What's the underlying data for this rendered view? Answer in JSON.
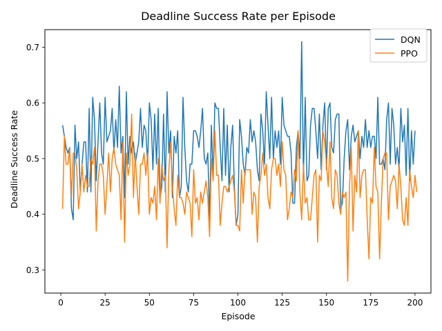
{
  "chart_data": {
    "type": "line",
    "title": "Deadline Success Rate per Episode",
    "xlabel": "Episode",
    "ylabel": "Deadline Success Rate",
    "xlim": [
      -9,
      209
    ],
    "ylim": [
      0.2585,
      0.7315
    ],
    "xticks": [
      0,
      25,
      50,
      75,
      100,
      125,
      150,
      175,
      200
    ],
    "yticks": [
      0.3,
      0.4,
      0.5,
      0.6,
      0.7
    ],
    "legend": "top-right",
    "grid": false,
    "series": [
      {
        "name": "DQN",
        "color": "#1f77b4",
        "values": [
          0.56,
          0.54,
          0.52,
          0.51,
          0.52,
          0.41,
          0.39,
          0.56,
          0.5,
          0.53,
          0.44,
          0.49,
          0.53,
          0.53,
          0.44,
          0.59,
          0.44,
          0.61,
          0.57,
          0.46,
          0.53,
          0.6,
          0.51,
          0.49,
          0.61,
          0.53,
          0.54,
          0.55,
          0.59,
          0.51,
          0.57,
          0.52,
          0.63,
          0.51,
          0.54,
          0.43,
          0.62,
          0.49,
          0.54,
          0.51,
          0.53,
          0.49,
          0.51,
          0.53,
          0.59,
          0.52,
          0.56,
          0.55,
          0.49,
          0.6,
          0.57,
          0.48,
          0.58,
          0.49,
          0.59,
          0.43,
          0.45,
          0.58,
          0.44,
          0.62,
          0.51,
          0.55,
          0.43,
          0.54,
          0.51,
          0.55,
          0.43,
          0.45,
          0.61,
          0.52,
          0.46,
          0.44,
          0.49,
          0.49,
          0.55,
          0.55,
          0.54,
          0.52,
          0.55,
          0.59,
          0.5,
          0.49,
          0.51,
          0.39,
          0.56,
          0.47,
          0.6,
          0.59,
          0.59,
          0.52,
          0.46,
          0.59,
          0.47,
          0.56,
          0.44,
          0.52,
          0.56,
          0.45,
          0.38,
          0.4,
          0.57,
          0.54,
          0.49,
          0.47,
          0.52,
          0.51,
          0.57,
          0.53,
          0.55,
          0.53,
          0.48,
          0.46,
          0.58,
          0.55,
          0.49,
          0.62,
          0.56,
          0.5,
          0.61,
          0.5,
          0.55,
          0.52,
          0.55,
          0.49,
          0.61,
          0.56,
          0.55,
          0.54,
          0.54,
          0.51,
          0.42,
          0.42,
          0.52,
          0.55,
          0.5,
          0.71,
          0.47,
          0.61,
          0.46,
          0.47,
          0.56,
          0.59,
          0.59,
          0.55,
          0.5,
          0.58,
          0.48,
          0.56,
          0.6,
          0.48,
          0.59,
          0.6,
          0.52,
          0.51,
          0.57,
          0.58,
          0.58,
          0.41,
          0.42,
          0.5,
          0.55,
          0.57,
          0.48,
          0.54,
          0.56,
          0.53,
          0.54,
          0.55,
          0.5,
          0.54,
          0.52,
          0.57,
          0.52,
          0.55,
          0.52,
          0.54,
          0.54,
          0.5,
          0.61,
          0.49,
          0.49,
          0.5,
          0.48,
          0.57,
          0.6,
          0.49,
          0.59,
          0.56,
          0.49,
          0.52,
          0.48,
          0.59,
          0.53,
          0.56,
          0.47,
          0.59,
          0.46,
          0.55,
          0.49,
          0.55
        ]
      },
      {
        "name": "PPO",
        "color": "#ff7f0e",
        "values": [
          0.41,
          0.54,
          0.49,
          0.49,
          0.52,
          0.43,
          0.51,
          0.51,
          0.48,
          0.41,
          0.44,
          0.49,
          0.44,
          0.47,
          0.45,
          0.45,
          0.5,
          0.49,
          0.52,
          0.37,
          0.46,
          0.49,
          0.49,
          0.47,
          0.4,
          0.45,
          0.51,
          0.44,
          0.5,
          0.52,
          0.49,
          0.48,
          0.47,
          0.39,
          0.53,
          0.35,
          0.51,
          0.47,
          0.49,
          0.58,
          0.43,
          0.51,
          0.45,
          0.4,
          0.49,
          0.49,
          0.51,
          0.47,
          0.51,
          0.4,
          0.43,
          0.42,
          0.45,
          0.39,
          0.5,
          0.42,
          0.49,
          0.46,
          0.47,
          0.34,
          0.48,
          0.53,
          0.45,
          0.41,
          0.38,
          0.47,
          0.43,
          0.43,
          0.42,
          0.4,
          0.44,
          0.43,
          0.42,
          0.36,
          0.48,
          0.42,
          0.43,
          0.39,
          0.44,
          0.42,
          0.44,
          0.46,
          0.43,
          0.36,
          0.5,
          0.46,
          0.55,
          0.47,
          0.47,
          0.38,
          0.42,
          0.45,
          0.45,
          0.44,
          0.45,
          0.46,
          0.47,
          0.44,
          0.38,
          0.38,
          0.37,
          0.48,
          0.42,
          0.48,
          0.48,
          0.48,
          0.48,
          0.4,
          0.44,
          0.43,
          0.35,
          0.45,
          0.47,
          0.51,
          0.47,
          0.49,
          0.43,
          0.41,
          0.48,
          0.5,
          0.5,
          0.47,
          0.49,
          0.45,
          0.53,
          0.48,
          0.47,
          0.39,
          0.41,
          0.44,
          0.43,
          0.48,
          0.46,
          0.55,
          0.44,
          0.39,
          0.49,
          0.42,
          0.43,
          0.39,
          0.39,
          0.43,
          0.47,
          0.48,
          0.35,
          0.47,
          0.46,
          0.55,
          0.53,
          0.49,
          0.45,
          0.53,
          0.43,
          0.41,
          0.48,
          0.47,
          0.42,
          0.4,
          0.44,
          0.43,
          0.44,
          0.28,
          0.45,
          0.52,
          0.37,
          0.47,
          0.44,
          0.55,
          0.43,
          0.47,
          0.48,
          0.48,
          0.39,
          0.32,
          0.43,
          0.42,
          0.52,
          0.45,
          0.44,
          0.32,
          0.42,
          0.5,
          0.51,
          0.51,
          0.39,
          0.45,
          0.46,
          0.47,
          0.46,
          0.41,
          0.49,
          0.45,
          0.39,
          0.38,
          0.43,
          0.38,
          0.48,
          0.45,
          0.43,
          0.47,
          0.44
        ]
      }
    ]
  }
}
